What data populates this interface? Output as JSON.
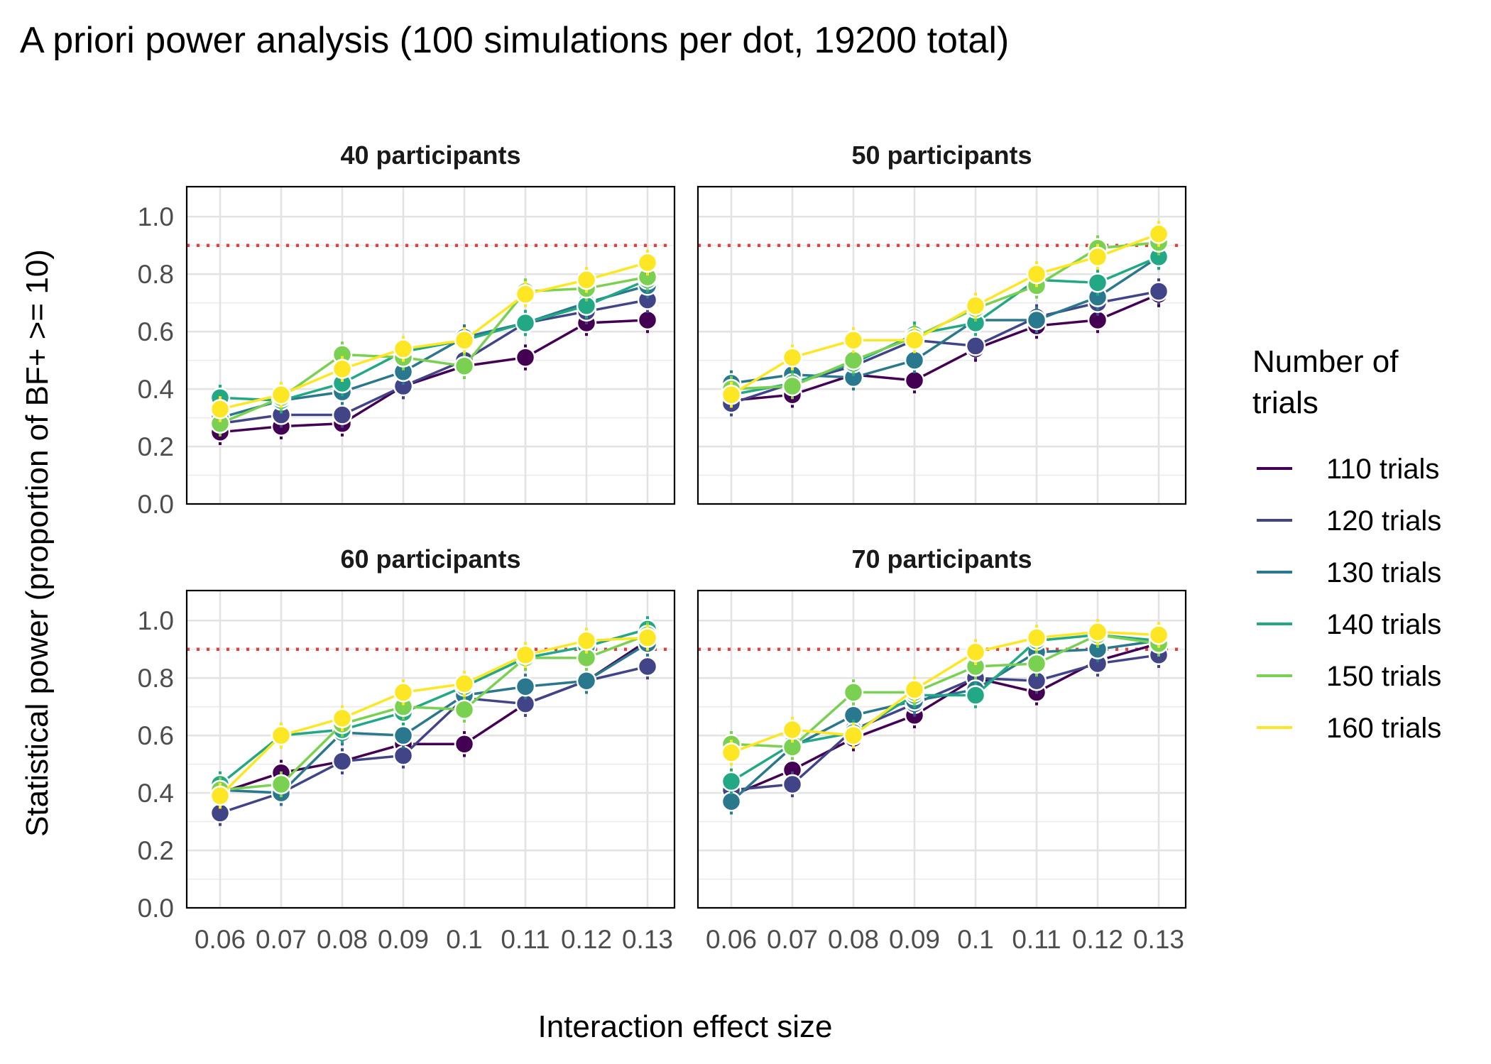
{
  "chart_data": {
    "type": "line",
    "title": "A priori power analysis (100 simulations per dot, 19200 total)",
    "xlabel": "Interaction effect size",
    "ylabel": "Statistical power (proportion of BF+ >= 10)",
    "x": [
      0.06,
      0.07,
      0.08,
      0.09,
      0.1,
      0.11,
      0.12,
      0.13
    ],
    "x_tick_labels": [
      "0.06",
      "0.07",
      "0.08",
      "0.09",
      "0.1",
      "0.11",
      "0.12",
      "0.13"
    ],
    "ylim": [
      0,
      1
    ],
    "y_ticks": [
      "0.0",
      "0.2",
      "0.4",
      "0.6",
      "0.8",
      "1.0"
    ],
    "threshold": 0.9,
    "threshold_color": "#f03b3b",
    "grid": true,
    "legend": {
      "title": "Number of trials",
      "title_lines": [
        "Number of",
        "trials"
      ],
      "position": "right"
    },
    "series_meta": [
      {
        "name": "110 trials",
        "color": "#440154"
      },
      {
        "name": "120 trials",
        "color": "#414487"
      },
      {
        "name": "130 trials",
        "color": "#2a788e"
      },
      {
        "name": "140 trials",
        "color": "#22a884"
      },
      {
        "name": "150 trials",
        "color": "#7ad151"
      },
      {
        "name": "160 trials",
        "color": "#fde725"
      }
    ],
    "panels": [
      {
        "label": "40 participants",
        "series": [
          {
            "name": "110 trials",
            "values": [
              0.25,
              0.27,
              0.28,
              0.41,
              0.48,
              0.51,
              0.63,
              0.64
            ]
          },
          {
            "name": "120 trials",
            "values": [
              0.28,
              0.31,
              0.31,
              0.41,
              0.5,
              0.63,
              0.67,
              0.71
            ]
          },
          {
            "name": "130 trials",
            "values": [
              0.3,
              0.36,
              0.39,
              0.46,
              0.58,
              0.63,
              0.7,
              0.76
            ]
          },
          {
            "name": "140 trials",
            "values": [
              0.37,
              0.36,
              0.42,
              0.53,
              0.57,
              0.63,
              0.69,
              0.78
            ]
          },
          {
            "name": "150 trials",
            "values": [
              0.28,
              0.37,
              0.52,
              0.51,
              0.48,
              0.74,
              0.75,
              0.79
            ]
          },
          {
            "name": "160 trials",
            "values": [
              0.33,
              0.38,
              0.47,
              0.54,
              0.57,
              0.73,
              0.78,
              0.84
            ]
          }
        ]
      },
      {
        "label": "50 participants",
        "series": [
          {
            "name": "110 trials",
            "values": [
              0.36,
              0.38,
              0.45,
              0.43,
              0.54,
              0.62,
              0.64,
              0.73
            ]
          },
          {
            "name": "120 trials",
            "values": [
              0.35,
              0.42,
              0.48,
              0.57,
              0.55,
              0.65,
              0.7,
              0.74
            ]
          },
          {
            "name": "130 trials",
            "values": [
              0.42,
              0.45,
              0.44,
              0.5,
              0.64,
              0.64,
              0.72,
              0.86
            ]
          },
          {
            "name": "140 trials",
            "values": [
              0.38,
              0.42,
              0.49,
              0.59,
              0.63,
              0.78,
              0.77,
              0.86
            ]
          },
          {
            "name": "150 trials",
            "values": [
              0.4,
              0.41,
              0.5,
              0.58,
              0.68,
              0.76,
              0.89,
              0.91
            ]
          },
          {
            "name": "160 trials",
            "values": [
              0.38,
              0.51,
              0.57,
              0.57,
              0.69,
              0.8,
              0.86,
              0.94
            ]
          }
        ]
      },
      {
        "label": "60 participants",
        "series": [
          {
            "name": "110 trials",
            "values": [
              0.4,
              0.47,
              0.51,
              0.57,
              0.57,
              0.71,
              0.79,
              0.93
            ]
          },
          {
            "name": "120 trials",
            "values": [
              0.33,
              0.4,
              0.51,
              0.53,
              0.73,
              0.71,
              0.79,
              0.84
            ]
          },
          {
            "name": "130 trials",
            "values": [
              0.41,
              0.4,
              0.61,
              0.6,
              0.74,
              0.77,
              0.79,
              0.92
            ]
          },
          {
            "name": "140 trials",
            "values": [
              0.43,
              0.6,
              0.62,
              0.68,
              0.77,
              0.87,
              0.91,
              0.97
            ]
          },
          {
            "name": "150 trials",
            "values": [
              0.41,
              0.43,
              0.64,
              0.7,
              0.69,
              0.87,
              0.87,
              0.95
            ]
          },
          {
            "name": "160 trials",
            "values": [
              0.39,
              0.6,
              0.66,
              0.75,
              0.78,
              0.88,
              0.93,
              0.94
            ]
          }
        ]
      },
      {
        "label": "70 participants",
        "series": [
          {
            "name": "110 trials",
            "values": [
              0.39,
              0.48,
              0.59,
              0.67,
              0.8,
              0.75,
              0.86,
              0.92
            ]
          },
          {
            "name": "120 trials",
            "values": [
              0.41,
              0.43,
              0.62,
              0.71,
              0.8,
              0.79,
              0.85,
              0.88
            ]
          },
          {
            "name": "130 trials",
            "values": [
              0.37,
              0.56,
              0.67,
              0.72,
              0.76,
              0.89,
              0.9,
              0.93
            ]
          },
          {
            "name": "140 trials",
            "values": [
              0.44,
              0.57,
              0.61,
              0.74,
              0.74,
              0.93,
              0.95,
              0.93
            ]
          },
          {
            "name": "150 trials",
            "values": [
              0.57,
              0.56,
              0.75,
              0.75,
              0.84,
              0.85,
              0.95,
              0.92
            ]
          },
          {
            "name": "160 trials",
            "values": [
              0.54,
              0.62,
              0.6,
              0.76,
              0.89,
              0.94,
              0.96,
              0.95
            ]
          }
        ]
      }
    ]
  }
}
